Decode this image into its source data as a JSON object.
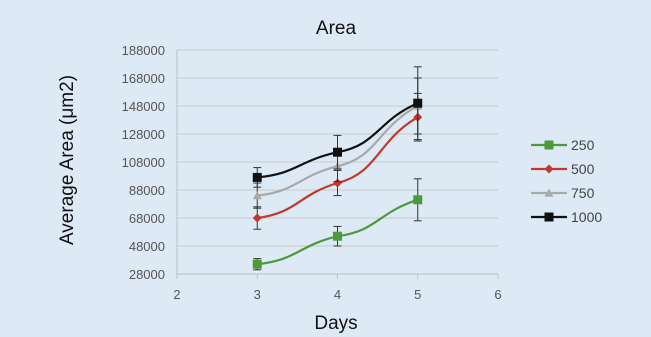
{
  "chart_data": {
    "type": "line",
    "title": "Area",
    "xlabel": "Days",
    "ylabel": "Average Area (μm2)",
    "xlim": [
      2,
      6
    ],
    "ylim": [
      28000,
      188000
    ],
    "x_ticks": [
      2,
      3,
      4,
      5,
      6
    ],
    "y_ticks": [
      28000,
      48000,
      68000,
      88000,
      108000,
      128000,
      148000,
      168000,
      188000
    ],
    "grid": "horizontal",
    "legend_position": "right",
    "series": [
      {
        "name": "250",
        "color": "#4e9a3a",
        "marker": "square",
        "x": [
          3,
          4,
          5
        ],
        "y": [
          35000,
          55000,
          81000
        ],
        "error": [
          4000,
          7000,
          15000
        ]
      },
      {
        "name": "500",
        "color": "#c0392b",
        "marker": "diamond",
        "x": [
          3,
          4,
          5
        ],
        "y": [
          68000,
          93000,
          140000
        ],
        "error": [
          8000,
          9000,
          17000
        ]
      },
      {
        "name": "750",
        "color": "#a9a9a9",
        "marker": "triangle",
        "x": [
          3,
          4,
          5
        ],
        "y": [
          84000,
          105000,
          148000
        ],
        "error": [
          9000,
          11000,
          20000
        ]
      },
      {
        "name": "1000",
        "color": "#111111",
        "marker": "square",
        "x": [
          3,
          4,
          5
        ],
        "y": [
          97000,
          115000,
          150000
        ],
        "error": [
          7000,
          12000,
          26000
        ]
      }
    ]
  }
}
